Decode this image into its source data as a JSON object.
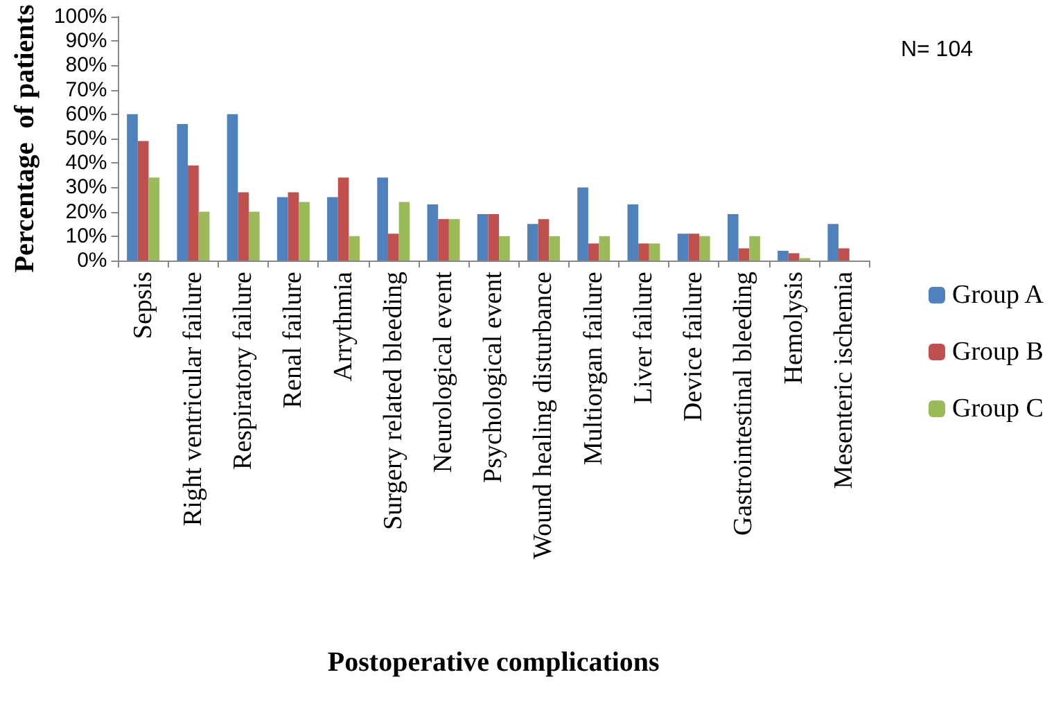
{
  "chart_data": {
    "type": "bar",
    "xlabel": "Postoperative complications",
    "ylabel": "Percentage  of patients",
    "annotations": [
      "N= 104"
    ],
    "categories": [
      "Sepsis",
      "Right ventricular failure",
      "Respiratory failure",
      "Renal failure",
      "Arrythmia",
      "Surgery related bleeding",
      "Neurological event",
      "Psychological event",
      "Wound healing disturbance",
      "Multiorgan failure",
      "Liver failure",
      "Device failure",
      "Gastrointestinal bleeding",
      "Hemolysis",
      "Mesenteric ischemia"
    ],
    "series": [
      {
        "name": "Group A",
        "color": "#4f81bd",
        "values": [
          60,
          56,
          60,
          26,
          26,
          34,
          23,
          19,
          15,
          30,
          23,
          11,
          19,
          4,
          15
        ]
      },
      {
        "name": "Group B",
        "color": "#c0504d",
        "values": [
          49,
          39,
          28,
          28,
          34,
          11,
          17,
          19,
          17,
          7,
          7,
          11,
          5,
          3,
          5
        ]
      },
      {
        "name": "Group C",
        "color": "#9bbb59",
        "values": [
          34,
          20,
          20,
          24,
          10,
          24,
          17,
          10,
          10,
          10,
          7,
          10,
          10,
          1,
          0
        ]
      }
    ],
    "ylim": [
      0,
      100
    ],
    "yticks": [
      {
        "value": 0,
        "label": "0%"
      },
      {
        "value": 10,
        "label": "10%"
      },
      {
        "value": 20,
        "label": "20%"
      },
      {
        "value": 30,
        "label": "30%"
      },
      {
        "value": 40,
        "label": "40%"
      },
      {
        "value": 50,
        "label": "50%"
      },
      {
        "value": 60,
        "label": "60%"
      },
      {
        "value": 70,
        "label": "70%"
      },
      {
        "value": 80,
        "label": "80%"
      },
      {
        "value": 90,
        "label": "90%"
      },
      {
        "value": 100,
        "label": "100%"
      }
    ],
    "grid": false,
    "legend": "right"
  }
}
